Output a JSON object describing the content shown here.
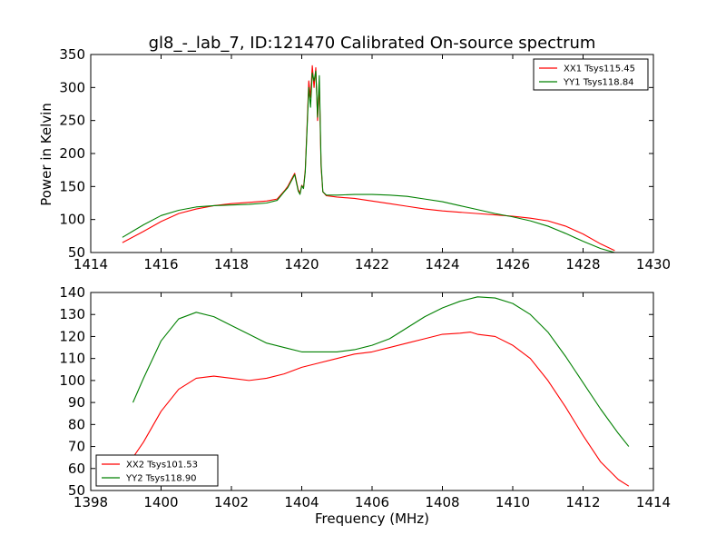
{
  "chart_data": [
    {
      "type": "line",
      "title": "gl8_-_lab_7, ID:121470 Calibrated On-source spectrum",
      "xlabel": "",
      "ylabel": "Power in Kelvin",
      "xlim": [
        1414,
        1430
      ],
      "ylim": [
        50,
        350
      ],
      "xticks": [
        1414,
        1416,
        1418,
        1420,
        1422,
        1424,
        1426,
        1428,
        1430
      ],
      "yticks": [
        50,
        100,
        150,
        200,
        250,
        300,
        350
      ],
      "legend_position": "top-right",
      "series": [
        {
          "name": "XX1 Tsys115.45",
          "color": "#ff0000",
          "x": [
            1414.9,
            1415.5,
            1416.0,
            1416.5,
            1417.0,
            1417.5,
            1418.0,
            1418.5,
            1419.0,
            1419.3,
            1419.5,
            1419.6,
            1419.7,
            1419.8,
            1419.9,
            1419.95,
            1420.0,
            1420.05,
            1420.1,
            1420.15,
            1420.2,
            1420.25,
            1420.3,
            1420.35,
            1420.4,
            1420.45,
            1420.5,
            1420.55,
            1420.6,
            1420.7,
            1421.0,
            1421.5,
            1422.0,
            1422.5,
            1423.0,
            1423.5,
            1424.0,
            1424.5,
            1425.0,
            1425.5,
            1426.0,
            1426.5,
            1427.0,
            1427.5,
            1428.0,
            1428.5,
            1428.9
          ],
          "y": [
            65,
            82,
            97,
            109,
            116,
            121,
            124,
            126,
            128,
            131,
            143,
            150,
            160,
            170,
            145,
            140,
            152,
            148,
            175,
            240,
            310,
            285,
            333,
            300,
            330,
            250,
            305,
            180,
            142,
            136,
            134,
            132,
            128,
            124,
            120,
            116,
            113,
            111,
            109,
            107,
            105,
            102,
            98,
            90,
            78,
            63,
            53
          ]
        },
        {
          "name": "YY1 Tsys118.84",
          "color": "#008000",
          "x": [
            1414.9,
            1415.5,
            1416.0,
            1416.5,
            1417.0,
            1417.5,
            1418.0,
            1418.5,
            1419.0,
            1419.3,
            1419.5,
            1419.6,
            1419.7,
            1419.8,
            1419.9,
            1419.95,
            1420.0,
            1420.05,
            1420.1,
            1420.15,
            1420.2,
            1420.25,
            1420.3,
            1420.35,
            1420.4,
            1420.45,
            1420.5,
            1420.55,
            1420.6,
            1420.7,
            1421.0,
            1421.5,
            1422.0,
            1422.5,
            1423.0,
            1423.5,
            1424.0,
            1424.5,
            1425.0,
            1425.5,
            1426.0,
            1426.5,
            1427.0,
            1427.5,
            1428.0,
            1428.5,
            1428.9
          ],
          "y": [
            73,
            92,
            106,
            114,
            119,
            121,
            122,
            123,
            125,
            129,
            142,
            148,
            158,
            168,
            143,
            138,
            151,
            147,
            172,
            235,
            300,
            270,
            322,
            310,
            325,
            255,
            318,
            185,
            142,
            137,
            137,
            138,
            138,
            137,
            135,
            131,
            127,
            121,
            115,
            109,
            104,
            98,
            90,
            79,
            67,
            56,
            50
          ]
        }
      ]
    },
    {
      "type": "line",
      "title": "",
      "xlabel": "Frequency (MHz)",
      "ylabel": "",
      "xlim": [
        1398,
        1414
      ],
      "ylim": [
        50,
        140
      ],
      "xticks": [
        1398,
        1400,
        1402,
        1404,
        1406,
        1408,
        1410,
        1412,
        1414
      ],
      "yticks": [
        50,
        60,
        70,
        80,
        90,
        100,
        110,
        120,
        130,
        140
      ],
      "legend_position": "bottom-left",
      "series": [
        {
          "name": "XX2 Tsys101.53",
          "color": "#ff0000",
          "x": [
            1399.2,
            1399.5,
            1400.0,
            1400.5,
            1401.0,
            1401.5,
            1402.0,
            1402.5,
            1403.0,
            1403.5,
            1404.0,
            1404.5,
            1405.0,
            1405.5,
            1406.0,
            1406.5,
            1407.0,
            1407.5,
            1408.0,
            1408.5,
            1408.8,
            1409.0,
            1409.5,
            1410.0,
            1410.5,
            1411.0,
            1411.5,
            1412.0,
            1412.5,
            1413.0,
            1413.3
          ],
          "y": [
            65,
            72,
            86,
            96,
            101,
            102,
            101,
            100,
            101,
            103,
            106,
            108,
            110,
            112,
            113,
            115,
            117,
            119,
            121,
            121.5,
            122,
            121,
            120,
            116,
            110,
            100,
            88,
            75,
            63,
            55,
            52
          ]
        },
        {
          "name": "YY2 Tsys118.90",
          "color": "#008000",
          "x": [
            1399.2,
            1399.5,
            1400.0,
            1400.5,
            1401.0,
            1401.5,
            1402.0,
            1402.5,
            1403.0,
            1403.5,
            1404.0,
            1404.5,
            1405.0,
            1405.5,
            1406.0,
            1406.5,
            1407.0,
            1407.5,
            1408.0,
            1408.5,
            1409.0,
            1409.5,
            1410.0,
            1410.5,
            1411.0,
            1411.5,
            1412.0,
            1412.5,
            1413.0,
            1413.3
          ],
          "y": [
            90,
            101,
            118,
            128,
            131,
            129,
            125,
            121,
            117,
            115,
            113,
            113,
            113,
            114,
            116,
            119,
            124,
            129,
            133,
            136,
            138,
            137.5,
            135,
            130,
            122,
            111,
            99,
            87,
            76,
            70
          ]
        }
      ]
    }
  ]
}
